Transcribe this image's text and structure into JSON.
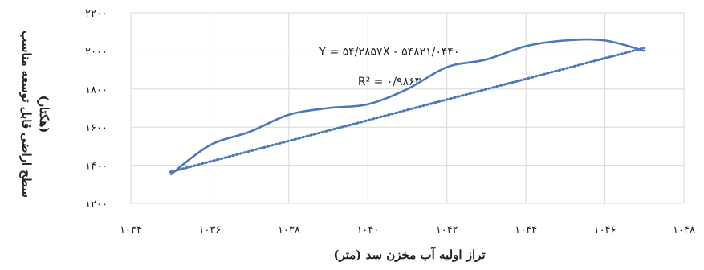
{
  "chart_data": {
    "type": "line",
    "title": "",
    "xlabel": "تراز اولیه آب مخزن سد (متر)",
    "ylabel_line1": "سطح اراضی قابل توسعه مناسب",
    "ylabel_line2": "(هکتار)",
    "xlim": [
      1034,
      1048
    ],
    "ylim": [
      1200,
      2200
    ],
    "x_ticks": [
      1034,
      1036,
      1038,
      1040,
      1042,
      1044,
      1046,
      1048
    ],
    "x_tick_labels": [
      "۱۰۳۴",
      "۱۰۳۶",
      "۱۰۳۸",
      "۱۰۴۰",
      "۱۰۴۲",
      "۱۰۴۴",
      "۱۰۴۶",
      "۱۰۴۸"
    ],
    "y_ticks": [
      1200,
      1400,
      1600,
      1800,
      2000,
      2200
    ],
    "y_tick_labels": [
      "۱۲۰۰",
      "۱۴۰۰",
      "۱۶۰۰",
      "۱۸۰۰",
      "۲۰۰۰",
      "۲۲۰۰"
    ],
    "grid": {
      "horizontal": true,
      "vertical": true
    },
    "series": [
      {
        "x": [
          1035,
          1036,
          1037,
          1038,
          1039,
          1040,
          1041,
          1042,
          1043,
          1044,
          1045,
          1046,
          1047
        ],
        "values": [
          1350,
          1505,
          1575,
          1665,
          1700,
          1720,
          1800,
          1915,
          1955,
          2025,
          2055,
          2055,
          2000
        ],
        "color": "#4a78b8"
      }
    ],
    "trendline": {
      "type": "linear",
      "slope": 54.2857,
      "intercept": -54821.044,
      "x_range": [
        1035,
        1047
      ],
      "color": "#4a78b8",
      "equation_label": "Y = ۵۴/۲۸۵۷X - ۵۴۸۲۱/۰۴۴۰",
      "r2_label": "R² = ۰/۹۸۶۳"
    }
  }
}
